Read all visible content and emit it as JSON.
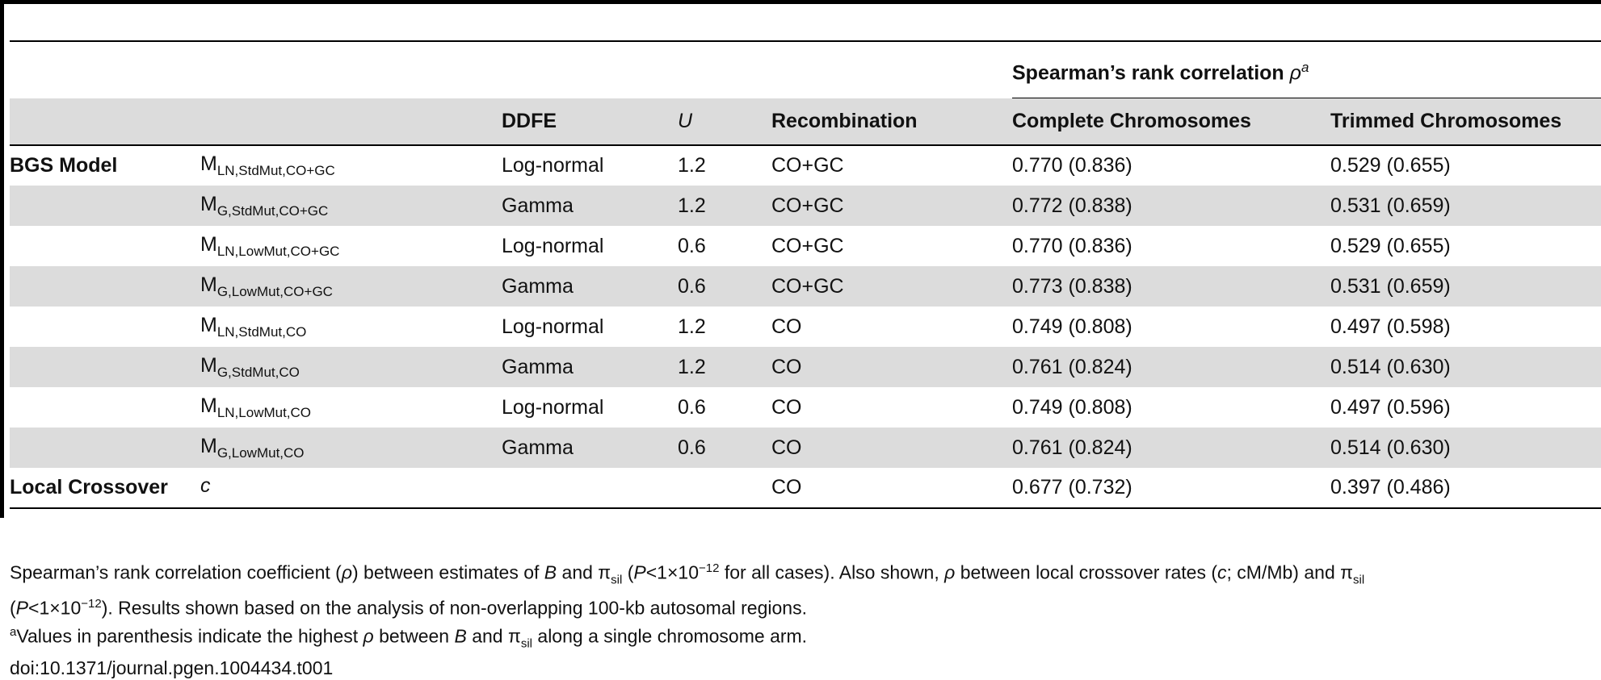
{
  "table": {
    "group_header": {
      "label": "Spearman’s rank correlation ",
      "symbol": "ρ",
      "mark": "a"
    },
    "columns": [
      {
        "label": ""
      },
      {
        "label": ""
      },
      {
        "label": "DDFE"
      },
      {
        "label": "U"
      },
      {
        "label": "Recombination"
      },
      {
        "label": "Complete Chromosomes"
      },
      {
        "label": "Trimmed Chromosomes"
      }
    ],
    "rows": [
      {
        "group": "BGS Model",
        "model": "M",
        "sub": "LN,StdMut,CO+GC",
        "ddfe": "Log-normal",
        "u": "1.2",
        "recomb": "CO+GC",
        "complete": "0.770 (0.836)",
        "trimmed": "0.529 (0.655)"
      },
      {
        "group": "",
        "model": "M",
        "sub": "G,StdMut,CO+GC",
        "ddfe": "Gamma",
        "u": "1.2",
        "recomb": "CO+GC",
        "complete": "0.772 (0.838)",
        "trimmed": "0.531 (0.659)"
      },
      {
        "group": "",
        "model": "M",
        "sub": "LN,LowMut,CO+GC",
        "ddfe": "Log-normal",
        "u": "0.6",
        "recomb": "CO+GC",
        "complete": "0.770 (0.836)",
        "trimmed": "0.529 (0.655)"
      },
      {
        "group": "",
        "model": "M",
        "sub": "G,LowMut,CO+GC",
        "ddfe": "Gamma",
        "u": "0.6",
        "recomb": "CO+GC",
        "complete": "0.773 (0.838)",
        "trimmed": "0.531 (0.659)"
      },
      {
        "group": "",
        "model": "M",
        "sub": "LN,StdMut,CO",
        "ddfe": "Log-normal",
        "u": "1.2",
        "recomb": "CO",
        "complete": "0.749 (0.808)",
        "trimmed": "0.497 (0.598)"
      },
      {
        "group": "",
        "model": "M",
        "sub": "G,StdMut,CO",
        "ddfe": "Gamma",
        "u": "1.2",
        "recomb": "CO",
        "complete": "0.761 (0.824)",
        "trimmed": "0.514 (0.630)"
      },
      {
        "group": "",
        "model": "M",
        "sub": "LN,LowMut,CO",
        "ddfe": "Log-normal",
        "u": "0.6",
        "recomb": "CO",
        "complete": "0.749 (0.808)",
        "trimmed": "0.497 (0.596)"
      },
      {
        "group": "",
        "model": "M",
        "sub": "G,LowMut,CO",
        "ddfe": "Gamma",
        "u": "0.6",
        "recomb": "CO",
        "complete": "0.761 (0.824)",
        "trimmed": "0.514 (0.630)"
      },
      {
        "group": "Local Crossover",
        "model": "c",
        "sub": "",
        "ddfe": "",
        "u": "",
        "recomb": "CO",
        "complete": "0.677 (0.732)",
        "trimmed": "0.397 (0.486)"
      }
    ]
  },
  "footnotes": {
    "line1": {
      "t1": "Spearman’s rank correlation coefficient (",
      "rho": "ρ",
      "t2": ") between estimates of ",
      "B": "B",
      "t3": " and π",
      "sil": "sil",
      "t4": " (",
      "P": "P",
      "t5": "<1×10",
      "exp": "−12",
      "t6": " for all cases). Also shown, ",
      "rho2": "ρ",
      "t7": " between local crossover rates (",
      "c": "c",
      "t8": "; cM/Mb) and π",
      "sil2": "sil"
    },
    "line2": {
      "t1": "(",
      "P": "P",
      "t2": "<1×10",
      "exp": "−12",
      "t3": "). Results shown based on the analysis of non-overlapping 100-kb autosomal regions."
    },
    "line3": {
      "mark": "a",
      "t1": "Values in parenthesis indicate the highest ",
      "rho": "ρ",
      "t2": " between ",
      "B": "B",
      "t3": " and π",
      "sil": "sil",
      "t4": " along a single chromosome arm."
    },
    "doi": "doi:10.1371/journal.pgen.1004434.t001"
  }
}
